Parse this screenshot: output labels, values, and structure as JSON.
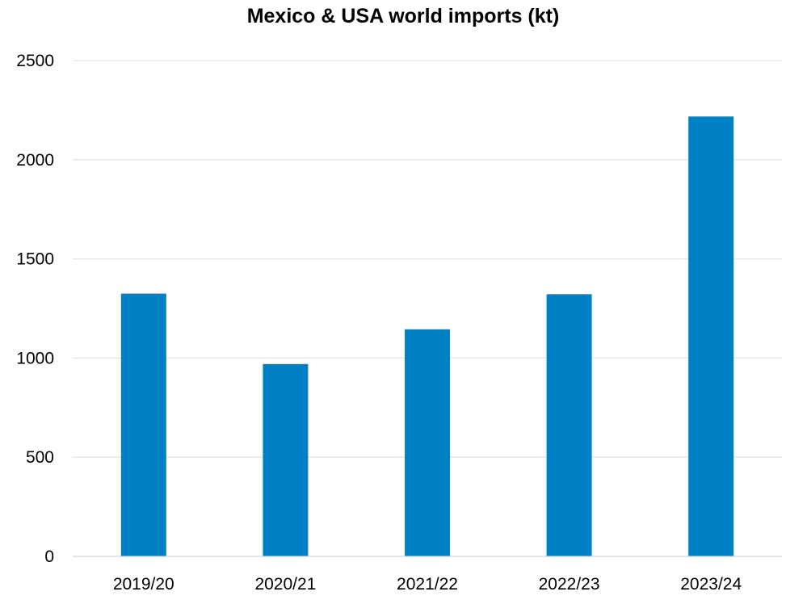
{
  "chart_data": {
    "type": "bar",
    "title": "Mexico & USA world imports (kt)",
    "xlabel": "",
    "ylabel": "",
    "categories": [
      "2019/20",
      "2020/21",
      "2021/22",
      "2022/23",
      "2023/24"
    ],
    "values": [
      1325,
      970,
      1145,
      1322,
      2218
    ],
    "ylim": [
      0,
      2500
    ],
    "yticks": [
      0,
      500,
      1000,
      1500,
      2000,
      2500
    ],
    "grid": true,
    "legend": "none",
    "bar_color": "#0081C6"
  }
}
